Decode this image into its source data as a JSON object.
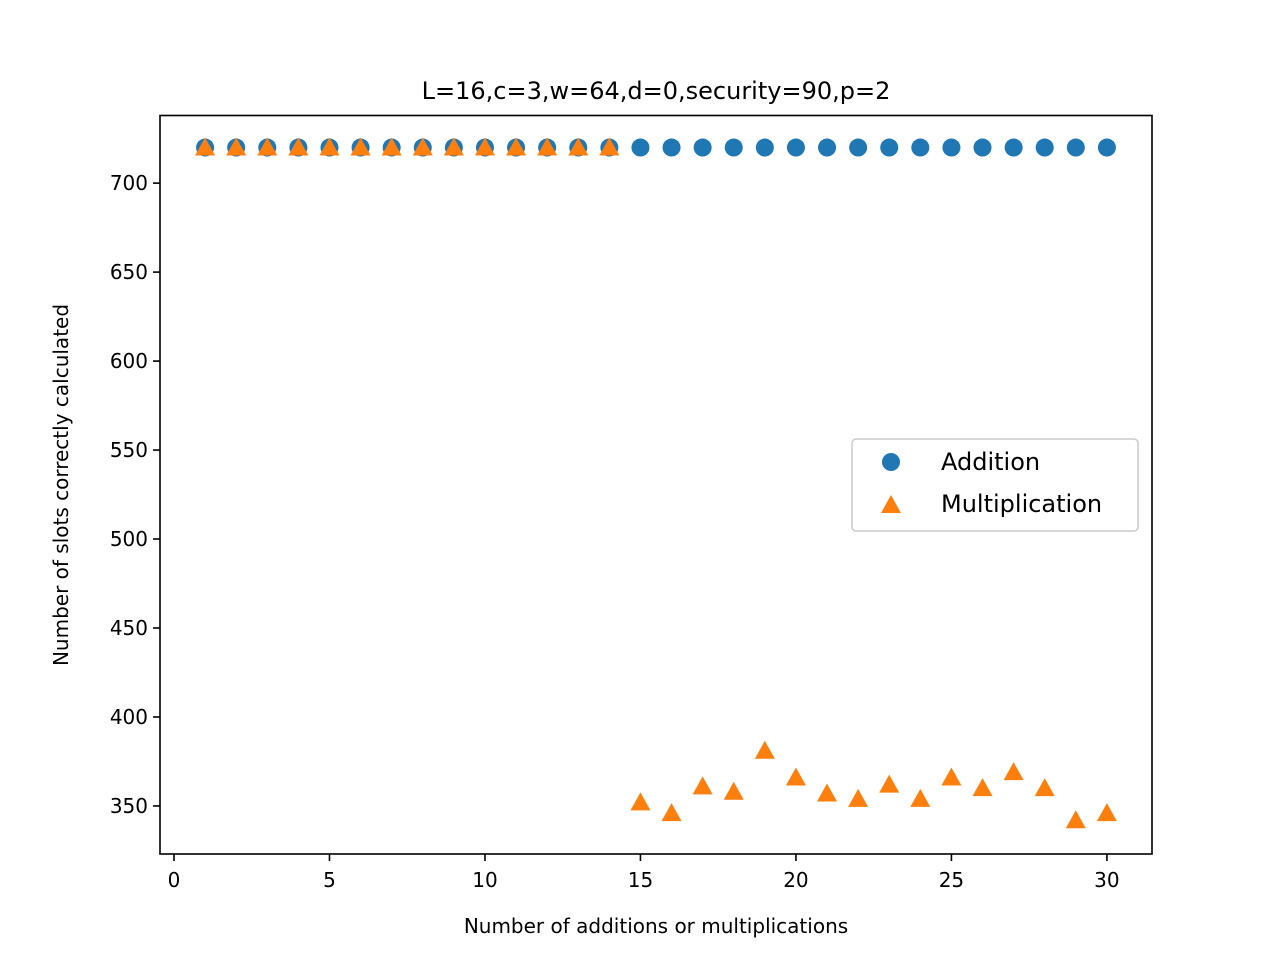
{
  "chart_data": {
    "type": "scatter",
    "title": "L=16,c=3,w=64,d=0,security=90,p=2",
    "xlabel": "Number of additions or multiplications",
    "ylabel": "Number of slots correctly calculated",
    "xlim": [
      -0.45,
      31.45
    ],
    "ylim": [
      323,
      738
    ],
    "xticks": [
      0,
      5,
      10,
      15,
      20,
      25,
      30
    ],
    "yticks": [
      350,
      400,
      450,
      500,
      550,
      600,
      650,
      700
    ],
    "grid": false,
    "legend_position": "center right",
    "series": [
      {
        "name": "Addition",
        "marker": "circle",
        "color": "#1f77b4",
        "x": [
          1,
          2,
          3,
          4,
          5,
          6,
          7,
          8,
          9,
          10,
          11,
          12,
          13,
          14,
          15,
          16,
          17,
          18,
          19,
          20,
          21,
          22,
          23,
          24,
          25,
          26,
          27,
          28,
          29,
          30
        ],
        "y": [
          720,
          720,
          720,
          720,
          720,
          720,
          720,
          720,
          720,
          720,
          720,
          720,
          720,
          720,
          720,
          720,
          720,
          720,
          720,
          720,
          720,
          720,
          720,
          720,
          720,
          720,
          720,
          720,
          720,
          720
        ]
      },
      {
        "name": "Multiplication",
        "marker": "triangle",
        "color": "#ff7f0e",
        "x": [
          1,
          2,
          3,
          4,
          5,
          6,
          7,
          8,
          9,
          10,
          11,
          12,
          13,
          14,
          15,
          16,
          17,
          18,
          19,
          20,
          21,
          22,
          23,
          24,
          25,
          26,
          27,
          28,
          29,
          30
        ],
        "y": [
          720,
          720,
          720,
          720,
          720,
          720,
          720,
          720,
          720,
          720,
          720,
          720,
          720,
          720,
          352,
          346,
          361,
          358,
          381,
          366,
          357,
          354,
          362,
          354,
          366,
          360,
          369,
          360,
          342,
          346
        ]
      }
    ]
  }
}
